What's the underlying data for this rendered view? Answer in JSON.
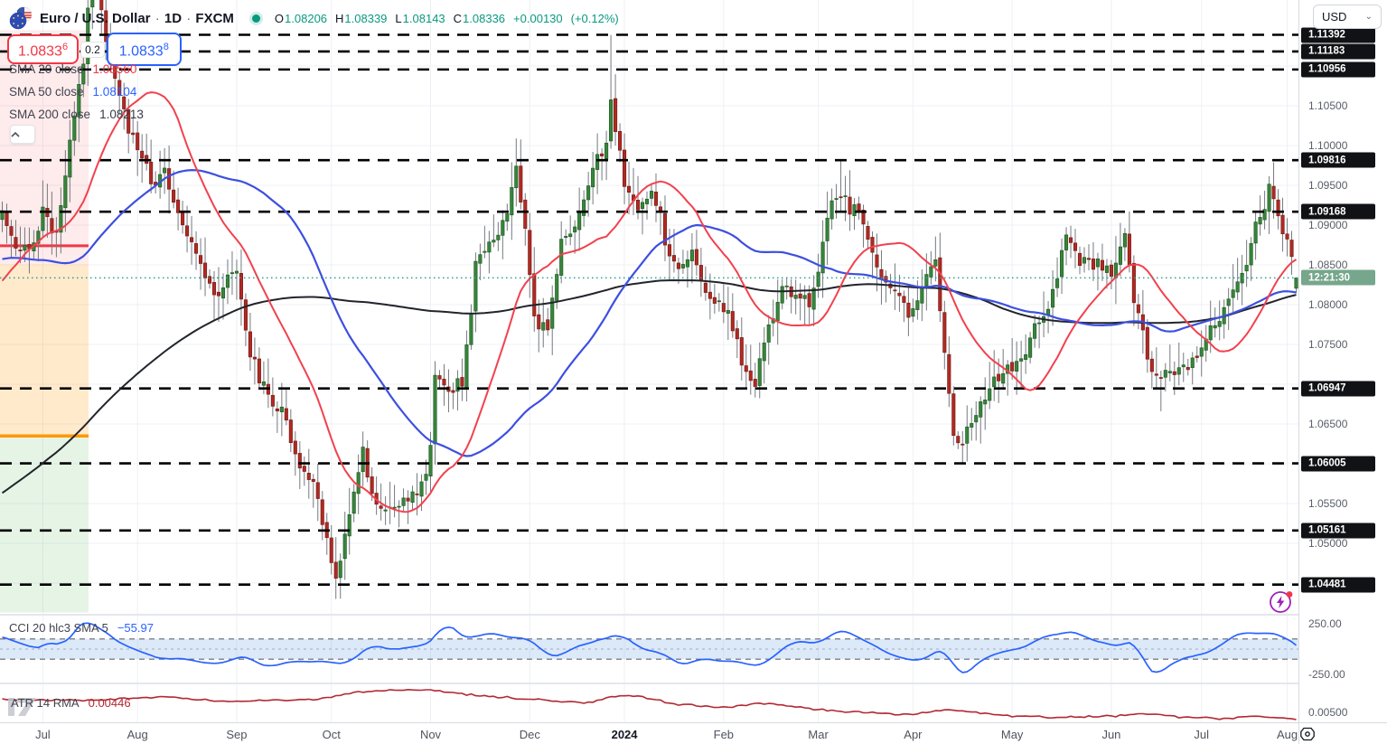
{
  "header": {
    "title": "Euro / U.S. Dollar",
    "separator": "·",
    "interval": "1D",
    "exchange": "FXCM",
    "ohlc": {
      "o_key": "O",
      "o": "1.08206",
      "h_key": "H",
      "h": "1.08339",
      "l_key": "L",
      "l": "1.08143",
      "c_key": "C",
      "c": "1.08336",
      "change": "+0.00130",
      "change_pct": "(+0.12%)"
    }
  },
  "trade_panel": {
    "sell_main": "1.0833",
    "sell_sup": "6",
    "spread": "0.2",
    "buy_main": "1.0833",
    "buy_sup": "8"
  },
  "legend": [
    {
      "name": "SMA 20 close",
      "value": "1.08560"
    },
    {
      "name": "SMA 50 close",
      "value": "1.08104"
    },
    {
      "name": "SMA 200 close",
      "value": "1.08213"
    }
  ],
  "currency_button": {
    "label": "USD"
  },
  "cci_row": {
    "label": "CCI 20 hlc3 SMA 5",
    "value": "−55.97"
  },
  "atr_row": {
    "label": "ATR 14 RMA",
    "value": "0.00446"
  },
  "countdown": "12:21:30",
  "chart_data": {
    "type": "candlestick",
    "title": "Euro / U.S. Dollar, 1D, FXCM",
    "bars": 288,
    "price_domain": [
      1.0413,
      1.1145
    ],
    "price_gridlines": [
      1.045,
      1.05,
      1.055,
      1.06,
      1.065,
      1.07,
      1.075,
      1.08,
      1.085,
      1.09,
      1.095,
      1.1,
      1.105,
      1.11
    ],
    "axis_ticks": [
      {
        "label": "1.10500",
        "price": 1.105
      },
      {
        "label": "1.10000",
        "price": 1.1
      },
      {
        "label": "1.09500",
        "price": 1.095
      },
      {
        "label": "1.09000",
        "price": 1.09
      },
      {
        "label": "1.08500",
        "price": 1.085
      },
      {
        "label": "1.08000",
        "price": 1.08
      },
      {
        "label": "1.07500",
        "price": 1.075
      },
      {
        "label": "1.06500",
        "price": 1.065
      },
      {
        "label": "1.05500",
        "price": 1.055
      },
      {
        "label": "1.05000",
        "price": 1.05
      }
    ],
    "level_lines": [
      {
        "label": "1.11392",
        "price": 1.11392
      },
      {
        "label": "1.11183",
        "price": 1.11183
      },
      {
        "label": "1.10956",
        "price": 1.10956
      },
      {
        "label": "1.09816",
        "price": 1.09816
      },
      {
        "label": "1.09168",
        "price": 1.09168
      },
      {
        "label": "1.06947",
        "price": 1.06947
      },
      {
        "label": "1.06005",
        "price": 1.06005
      },
      {
        "label": "1.05161",
        "price": 1.05161
      },
      {
        "label": "1.04481",
        "price": 1.04481
      }
    ],
    "current_price": 1.08336,
    "last_bar": {
      "o": 1.08206,
      "h": 1.08339,
      "l": 1.08143,
      "c": 1.08336
    },
    "noise_seed": 7,
    "close_anchors": [
      [
        -200,
        1.01
      ],
      [
        -185,
        0.995
      ],
      [
        -170,
        1.0
      ],
      [
        -155,
        1.02
      ],
      [
        -140,
        1.048
      ],
      [
        -125,
        1.065
      ],
      [
        -110,
        1.072
      ],
      [
        -95,
        1.082
      ],
      [
        -80,
        1.062
      ],
      [
        -65,
        1.07
      ],
      [
        -50,
        1.085
      ],
      [
        -35,
        1.098
      ],
      [
        -25,
        1.078
      ],
      [
        -15,
        1.074
      ],
      [
        -8,
        1.086
      ],
      [
        -3,
        1.091
      ],
      [
        0,
        1.0915
      ],
      [
        3,
        1.086
      ],
      [
        6,
        1.0875
      ],
      [
        9,
        1.091
      ],
      [
        12,
        1.089
      ],
      [
        15,
        1.1
      ],
      [
        18,
        1.1105
      ],
      [
        20,
        1.124
      ],
      [
        23,
        1.113
      ],
      [
        26,
        1.106
      ],
      [
        30,
        1.0995
      ],
      [
        33,
        1.095
      ],
      [
        36,
        1.0975
      ],
      [
        39,
        1.091
      ],
      [
        43,
        1.087
      ],
      [
        47,
        1.08
      ],
      [
        50,
        1.084
      ],
      [
        52,
        1.0845
      ],
      [
        55,
        1.073
      ],
      [
        58,
        1.07
      ],
      [
        62,
        1.066
      ],
      [
        66,
        1.0605
      ],
      [
        69,
        1.057
      ],
      [
        72,
        1.05
      ],
      [
        74,
        1.0455
      ],
      [
        77,
        1.053
      ],
      [
        80,
        1.062
      ],
      [
        83,
        1.055
      ],
      [
        86,
        1.0535
      ],
      [
        89,
        1.056
      ],
      [
        93,
        1.0565
      ],
      [
        95,
        1.062
      ],
      [
        96,
        1.072
      ],
      [
        99,
        1.0685
      ],
      [
        102,
        1.07
      ],
      [
        105,
        1.085
      ],
      [
        108,
        1.0875
      ],
      [
        111,
        1.0905
      ],
      [
        114,
        1.0965
      ],
      [
        116,
        1.089
      ],
      [
        118,
        1.079
      ],
      [
        121,
        1.0765
      ],
      [
        124,
        1.0875
      ],
      [
        127,
        1.0895
      ],
      [
        130,
        1.095
      ],
      [
        134,
        1.101
      ],
      [
        135,
        1.106
      ],
      [
        138,
        1.0945
      ],
      [
        141,
        1.093
      ],
      [
        144,
        1.095
      ],
      [
        147,
        1.088
      ],
      [
        150,
        1.0845
      ],
      [
        153,
        1.0855
      ],
      [
        156,
        1.082
      ],
      [
        159,
        1.0805
      ],
      [
        162,
        1.077
      ],
      [
        164,
        1.073
      ],
      [
        167,
        1.07
      ],
      [
        170,
        1.077
      ],
      [
        173,
        1.082
      ],
      [
        176,
        1.0805
      ],
      [
        179,
        1.081
      ],
      [
        181,
        1.0845
      ],
      [
        184,
        1.093
      ],
      [
        186,
        1.094
      ],
      [
        189,
        1.092
      ],
      [
        192,
        1.088
      ],
      [
        195,
        1.084
      ],
      [
        198,
        1.081
      ],
      [
        201,
        1.079
      ],
      [
        204,
        1.083
      ],
      [
        207,
        1.086
      ],
      [
        209,
        1.074
      ],
      [
        211,
        1.0645
      ],
      [
        213,
        1.062
      ],
      [
        216,
        1.067
      ],
      [
        219,
        1.069
      ],
      [
        222,
        1.0715
      ],
      [
        224,
        1.072
      ],
      [
        227,
        1.074
      ],
      [
        230,
        1.078
      ],
      [
        233,
        1.082
      ],
      [
        236,
        1.088
      ],
      [
        239,
        1.086
      ],
      [
        242,
        1.085
      ],
      [
        245,
        1.0845
      ],
      [
        246,
        1.084
      ],
      [
        249,
        1.089
      ],
      [
        251,
        1.08
      ],
      [
        254,
        1.074
      ],
      [
        257,
        1.0705
      ],
      [
        260,
        1.071
      ],
      [
        263,
        1.073
      ],
      [
        266,
        1.0745
      ],
      [
        269,
        1.078
      ],
      [
        272,
        1.081
      ],
      [
        275,
        1.083
      ],
      [
        278,
        1.09
      ],
      [
        281,
        1.094
      ],
      [
        284,
        1.0895
      ],
      [
        286,
        1.086
      ],
      [
        287,
        1.0834
      ]
    ],
    "spikes": [
      [
        20,
        "h",
        1.1276
      ],
      [
        74,
        "l",
        1.0448
      ],
      [
        114,
        "h",
        1.1009
      ],
      [
        135,
        "h",
        1.1139
      ],
      [
        167,
        "l",
        1.0695
      ],
      [
        186,
        "h",
        1.0981
      ],
      [
        213,
        "l",
        1.0601
      ],
      [
        257,
        "l",
        1.0666
      ],
      [
        281,
        "h",
        1.0948
      ]
    ],
    "sma": [
      {
        "name": "SMA 20 close",
        "period": 20,
        "last": 1.0856,
        "color": "#f2414e",
        "width": 2
      },
      {
        "name": "SMA 50 close",
        "period": 50,
        "last": 1.08104,
        "color": "#3d4fe0",
        "width": 2.2
      },
      {
        "name": "SMA 200 close",
        "period": 200,
        "last": 1.08213,
        "color": "#22242b",
        "width": 2
      }
    ],
    "candle_colors": {
      "up_fill": "#38853c",
      "up_border": "#1f5c23",
      "down_fill": "#b02a23",
      "down_border": "#7a1d18",
      "wick": "#75797f"
    },
    "months": [
      {
        "text": "Jul",
        "idx": 9
      },
      {
        "text": "Aug",
        "idx": 30
      },
      {
        "text": "Sep",
        "idx": 52
      },
      {
        "text": "Oct",
        "idx": 73
      },
      {
        "text": "Nov",
        "idx": 95
      },
      {
        "text": "Dec",
        "idx": 117
      },
      {
        "text": "2024",
        "idx": 138,
        "year": true
      },
      {
        "text": "Feb",
        "idx": 160
      },
      {
        "text": "Mar",
        "idx": 181
      },
      {
        "text": "Apr",
        "idx": 202
      },
      {
        "text": "May",
        "idx": 224
      },
      {
        "text": "Jun",
        "idx": 246
      },
      {
        "text": "Jul",
        "idx": 266
      },
      {
        "text": "Aug",
        "idx": 285
      }
    ],
    "zones": [
      {
        "name": "upper-zone",
        "color": "rgba(242,54,69,0.10)",
        "top_price": 1.1145,
        "bottom_price": 1.0851
      },
      {
        "name": "middle-zone",
        "color": "rgba(255,152,0,0.20)",
        "top_price": 1.0851,
        "bottom_price": 1.0636
      },
      {
        "name": "lower-zone",
        "color": "rgba(76,175,80,0.14)",
        "top_price": 1.0636,
        "bottom_price": 1.0413
      }
    ],
    "zone_lines": [
      {
        "color": "#f23645",
        "price": 1.0874,
        "width": 3
      },
      {
        "color": "#ff9800",
        "price": 1.0635,
        "width": 3.5
      }
    ],
    "cci_pane": {
      "period": 20,
      "source": "hlc3",
      "smooth": 5,
      "last": -55.97,
      "band": [
        -100,
        100
      ],
      "color": "#2962ff",
      "band_fill": "rgba(131,177,234,0.28)",
      "axis_ticks": [
        {
          "label": "250.00",
          "value": 250
        },
        {
          "label": "-250.00",
          "value": -250
        }
      ]
    },
    "atr_pane": {
      "period": 14,
      "smoothing": "RMA",
      "last": 0.00446,
      "color": "#b22833",
      "value_domain": [
        0.0043,
        0.007
      ],
      "axis_tick": {
        "label": "0.00500",
        "value": 0.005
      },
      "anchors": [
        [
          0,
          0.006
        ],
        [
          20,
          0.0059
        ],
        [
          35,
          0.0062
        ],
        [
          50,
          0.0058
        ],
        [
          70,
          0.006
        ],
        [
          80,
          0.0066
        ],
        [
          95,
          0.0067
        ],
        [
          105,
          0.0063
        ],
        [
          117,
          0.006
        ],
        [
          130,
          0.0057
        ],
        [
          135,
          0.0062
        ],
        [
          140,
          0.0063
        ],
        [
          150,
          0.0056
        ],
        [
          160,
          0.0054
        ],
        [
          170,
          0.0057
        ],
        [
          181,
          0.0052
        ],
        [
          190,
          0.005
        ],
        [
          200,
          0.0048
        ],
        [
          210,
          0.0052
        ],
        [
          215,
          0.005
        ],
        [
          224,
          0.0047
        ],
        [
          235,
          0.0046
        ],
        [
          246,
          0.0047
        ],
        [
          255,
          0.0049
        ],
        [
          262,
          0.0046
        ],
        [
          270,
          0.0045
        ],
        [
          278,
          0.0047
        ],
        [
          283,
          0.0046
        ],
        [
          287,
          0.00446
        ]
      ]
    }
  }
}
